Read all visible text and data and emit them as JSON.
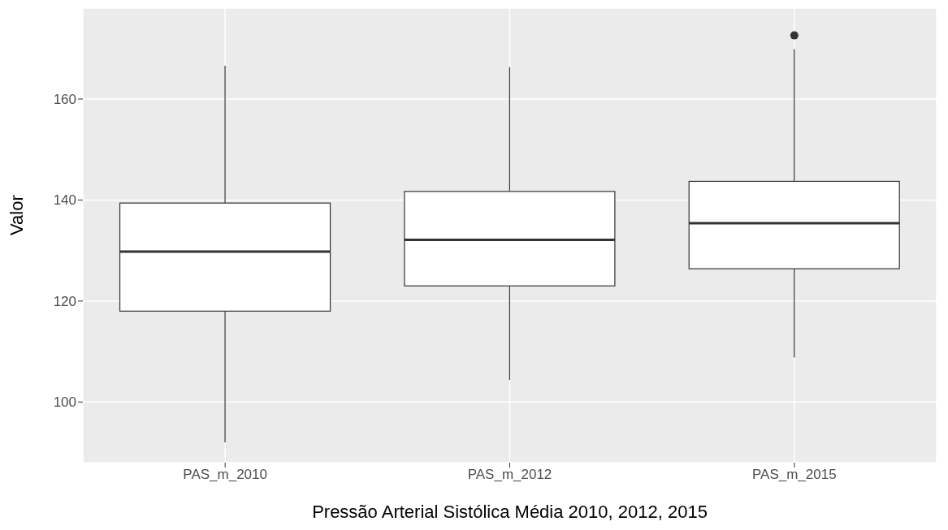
{
  "chart_data": {
    "type": "box",
    "xlabel": "Pressão Arterial Sistólica Média 2010, 2012, 2015",
    "ylabel": "Valor",
    "categories": [
      "PAS_m_2010",
      "PAS_m_2012",
      "PAS_m_2015"
    ],
    "boxes": [
      {
        "low": 92,
        "q1": 118,
        "median": 129.8,
        "q3": 139.4,
        "high": 166.6
      },
      {
        "low": 104.4,
        "q1": 123,
        "median": 132.1,
        "q3": 141.7,
        "high": 166.3
      },
      {
        "low": 108.8,
        "q1": 126.4,
        "median": 135.4,
        "q3": 143.7,
        "high": 169.9,
        "outliers": [
          172.6
        ]
      }
    ],
    "ylim": [
      88,
      178
    ],
    "yticks": [
      100,
      120,
      140,
      160
    ],
    "grid": true
  }
}
